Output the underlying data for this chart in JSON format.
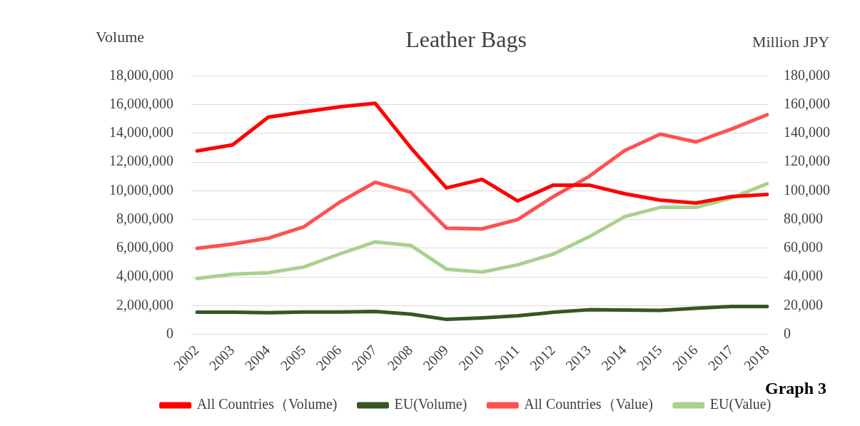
{
  "chart_data": {
    "type": "line",
    "title": "Leather Bags",
    "ylabel": "Volume",
    "y2label": "Million JPY",
    "categories": [
      "2002",
      "2003",
      "2004",
      "2005",
      "2006",
      "2007",
      "2008",
      "2009",
      "2010",
      "2011",
      "2012",
      "2013",
      "2014",
      "2015",
      "2016",
      "2017",
      "2018"
    ],
    "series": [
      {
        "name": "All Countries（Volume)",
        "color": "#ff0000",
        "values": [
          12780000,
          13200000,
          15130000,
          15500000,
          15850000,
          16100000,
          13000000,
          10200000,
          10800000,
          9300000,
          10400000,
          10400000,
          9800000,
          9350000,
          9150000,
          9600000,
          9750000
        ]
      },
      {
        "name": "EU(Volume)",
        "color": "#375623",
        "values": [
          1550000,
          1550000,
          1520000,
          1570000,
          1570000,
          1600000,
          1420000,
          1050000,
          1150000,
          1300000,
          1550000,
          1720000,
          1700000,
          1680000,
          1820000,
          1950000,
          1950000
        ]
      },
      {
        "name": "All Countries（Value)",
        "color": "#ff5050",
        "axis": "y2",
        "values": [
          60000,
          63000,
          67000,
          75000,
          92000,
          106000,
          99000,
          74000,
          73500,
          80000,
          96000,
          110000,
          128000,
          139500,
          134000,
          143000,
          153000
        ]
      },
      {
        "name": "EU(Value)",
        "color": "#a9d18e",
        "axis": "y2",
        "values": [
          39000,
          42000,
          43000,
          47000,
          56000,
          64500,
          62000,
          45500,
          43500,
          48500,
          56000,
          68000,
          82000,
          88500,
          88500,
          95000,
          105000
        ]
      }
    ],
    "ylim": [
      0,
      18000000
    ],
    "yticks": [
      {
        "value": 0,
        "label": "0"
      },
      {
        "value": 2000000,
        "label": "2,000,000"
      },
      {
        "value": 4000000,
        "label": "4,000,000"
      },
      {
        "value": 6000000,
        "label": "6,000,000"
      },
      {
        "value": 8000000,
        "label": "8,000,000"
      },
      {
        "value": 10000000,
        "label": "10,000,000"
      },
      {
        "value": 12000000,
        "label": "12,000,000"
      },
      {
        "value": 14000000,
        "label": "14,000,000"
      },
      {
        "value": 16000000,
        "label": "16,000,000"
      },
      {
        "value": 18000000,
        "label": "18,000,000"
      }
    ],
    "y2lim": [
      0,
      180000
    ],
    "y2ticks": [
      {
        "value": 0,
        "label": "0"
      },
      {
        "value": 20000,
        "label": "20,000"
      },
      {
        "value": 40000,
        "label": "40,000"
      },
      {
        "value": 60000,
        "label": "60,000"
      },
      {
        "value": 80000,
        "label": "80,000"
      },
      {
        "value": 100000,
        "label": "100,000"
      },
      {
        "value": 120000,
        "label": "120,000"
      },
      {
        "value": 140000,
        "label": "140,000"
      },
      {
        "value": 160000,
        "label": "160,000"
      },
      {
        "value": 180000,
        "label": "180,000"
      }
    ],
    "grid": "y",
    "legend": "bottom",
    "marker": "none",
    "line_style": "solid",
    "annotations": [
      "Graph 3"
    ]
  }
}
